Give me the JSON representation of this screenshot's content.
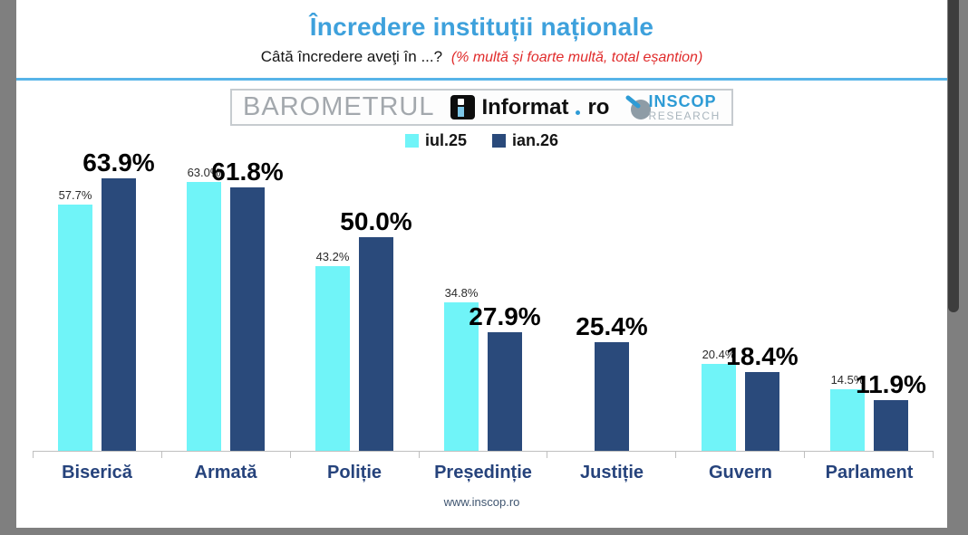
{
  "title": "Încredere instituții naționale",
  "subtitle": {
    "question": "Câtă încredere aveţi în ...?",
    "note": "(% multă și foarte multă, total eșantion)"
  },
  "colors": {
    "title_blue": "#3ea1dc",
    "note_red": "#e02b2b",
    "rule_blue": "#57b4e8",
    "category_navy": "#26437c"
  },
  "logos": {
    "barometrul": "BAROMETRUL",
    "informat_name": "Informat",
    "informat_tld": "ro",
    "inscop": "INSCOP",
    "research": "RESEARCH"
  },
  "chart_data": {
    "type": "bar",
    "categories": [
      "Biserică",
      "Armată",
      "Poliție",
      "Președinție",
      "Justiție",
      "Guvern",
      "Parlament"
    ],
    "series": [
      {
        "name": "iul.25",
        "color": "#70f4f8",
        "values": [
          57.7,
          63.0,
          43.2,
          34.8,
          null,
          20.4,
          14.5
        ]
      },
      {
        "name": "ian.26",
        "color": "#2a4a7b",
        "values": [
          63.9,
          61.8,
          50.0,
          27.9,
          25.4,
          18.4,
          11.9
        ]
      }
    ],
    "title": "Încredere instituții naționale",
    "xlabel": "",
    "ylabel": "",
    "ylim": [
      0,
      70
    ],
    "grid": false,
    "legend_position": "top",
    "value_label_format": "0.0%"
  },
  "footer": "www.inscop.ro"
}
